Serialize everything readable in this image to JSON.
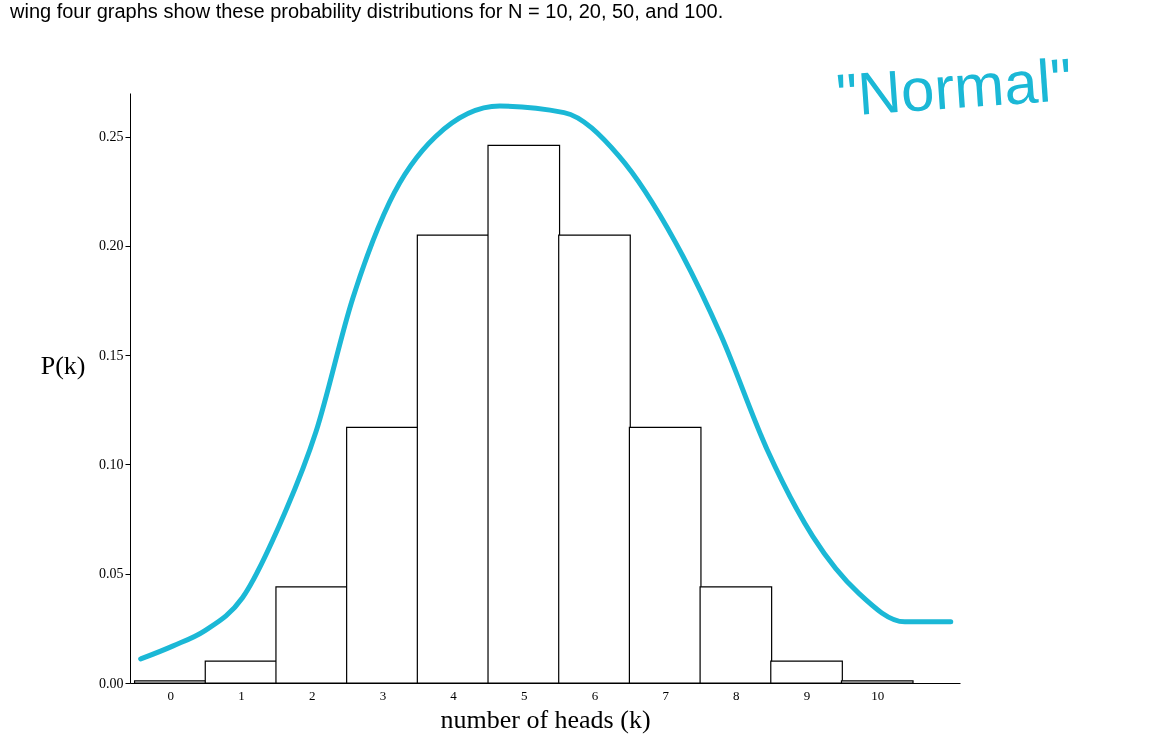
{
  "chart_data": {
    "type": "bar",
    "title": "wing four graphs show these probability distributions for N = 10, 20, 50, and 100.",
    "xlabel": "number of heads (k)",
    "ylabel": "P(k)",
    "x": [
      0,
      1,
      2,
      3,
      4,
      5,
      6,
      7,
      8,
      9,
      10
    ],
    "series": [
      {
        "color": "#ffffff",
        "values": [
          0.001,
          0.01,
          0.044,
          0.117,
          0.205,
          0.246,
          0.205,
          0.117,
          0.044,
          0.01,
          0.001
        ]
      },
      {
        "type": "line",
        "color": "#1bb8d6",
        "x": [
          -0.42,
          0.04,
          0.49,
          1.02,
          1.54,
          2.06,
          2.58,
          3.1,
          3.75,
          4.66,
          5.57,
          6.35,
          7.14,
          7.79,
          8.44,
          9.09,
          9.74,
          10.39,
          11.04
        ],
        "values": [
          0.011,
          0.017,
          0.024,
          0.039,
          0.072,
          0.115,
          0.176,
          0.22,
          0.25,
          0.264,
          0.261,
          0.241,
          0.202,
          0.159,
          0.107,
          0.067,
          0.041,
          0.028,
          0.028
        ]
      }
    ],
    "annotations": [
      "\"Normal\""
    ],
    "xlim": [
      -0.5,
      11.1
    ],
    "ylim": [
      0,
      0.27
    ],
    "xticks": [
      0,
      1,
      2,
      3,
      4,
      5,
      6,
      7,
      8,
      9,
      10
    ],
    "yticks": [
      {
        "value": 0,
        "label": "0.00"
      },
      {
        "value": 0.05,
        "label": "0.05"
      },
      {
        "value": 0.1,
        "label": "0.10"
      },
      {
        "value": 0.15,
        "label": "0.15"
      },
      {
        "value": 0.2,
        "label": "0.20"
      },
      {
        "value": 0.25,
        "label": "0.25"
      }
    ],
    "grid": false
  }
}
